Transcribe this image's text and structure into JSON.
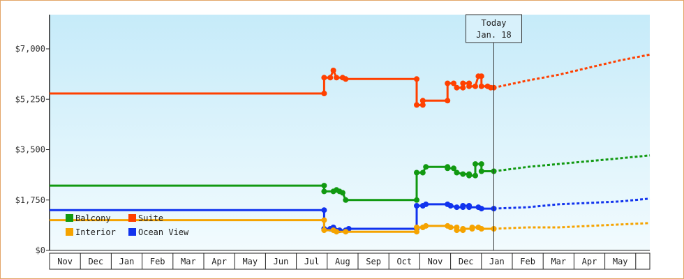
{
  "chart_data": {
    "type": "line",
    "y_ticks": [
      {
        "value": 0,
        "label": "$0"
      },
      {
        "value": 1750,
        "label": "$1,750"
      },
      {
        "value": 3500,
        "label": "$3,500"
      },
      {
        "value": 5250,
        "label": "$5,250"
      },
      {
        "value": 7000,
        "label": "$7,000"
      }
    ],
    "ylim": [
      0,
      7000
    ],
    "x_months": [
      "Nov",
      "Dec",
      "Jan",
      "Feb",
      "Mar",
      "Apr",
      "May",
      "Jun",
      "Jul",
      "Aug",
      "Sep",
      "Oct",
      "Nov",
      "Dec",
      "Jan",
      "Feb",
      "Mar",
      "Apr",
      "May"
    ],
    "today": {
      "line1": "Today",
      "line2": "Jan. 18",
      "x": 14.4
    },
    "legend": [
      "Balcony",
      "Suite",
      "Interior",
      "Ocean View"
    ],
    "series": [
      {
        "name": "Suite",
        "color": "#ff4000",
        "points": [
          [
            0,
            5450
          ],
          [
            8.9,
            5450
          ],
          [
            8.9,
            6000
          ],
          [
            9.1,
            6000
          ],
          [
            9.2,
            6250
          ],
          [
            9.3,
            6000
          ],
          [
            9.5,
            6000
          ],
          [
            9.6,
            5950
          ],
          [
            11.9,
            5950
          ],
          [
            11.9,
            5050
          ],
          [
            12.1,
            5050
          ],
          [
            12.1,
            5200
          ],
          [
            12.9,
            5200
          ],
          [
            12.9,
            5800
          ],
          [
            13.1,
            5800
          ],
          [
            13.2,
            5650
          ],
          [
            13.4,
            5650
          ],
          [
            13.4,
            5800
          ],
          [
            13.6,
            5800
          ],
          [
            13.6,
            5700
          ],
          [
            13.8,
            5700
          ],
          [
            13.9,
            6050
          ],
          [
            14.0,
            6050
          ],
          [
            14.0,
            5700
          ],
          [
            14.2,
            5700
          ],
          [
            14.3,
            5650
          ],
          [
            14.4,
            5650
          ]
        ],
        "forecast": [
          [
            14.4,
            5650
          ],
          [
            15.5,
            5900
          ],
          [
            16.5,
            6100
          ],
          [
            17.5,
            6350
          ],
          [
            18.5,
            6600
          ],
          [
            19.5,
            6800
          ]
        ]
      },
      {
        "name": "Balcony",
        "color": "#119911",
        "points": [
          [
            0,
            2250
          ],
          [
            8.9,
            2250
          ],
          [
            8.9,
            2050
          ],
          [
            9.2,
            2050
          ],
          [
            9.3,
            2100
          ],
          [
            9.4,
            2050
          ],
          [
            9.5,
            2000
          ],
          [
            9.6,
            1750
          ],
          [
            11.9,
            1750
          ],
          [
            11.9,
            2700
          ],
          [
            12.1,
            2700
          ],
          [
            12.2,
            2900
          ],
          [
            12.9,
            2900
          ],
          [
            12.9,
            2850
          ],
          [
            13.1,
            2850
          ],
          [
            13.2,
            2700
          ],
          [
            13.4,
            2650
          ],
          [
            13.6,
            2650
          ],
          [
            13.6,
            2600
          ],
          [
            13.8,
            2600
          ],
          [
            13.8,
            3000
          ],
          [
            14.0,
            3000
          ],
          [
            14.0,
            2750
          ],
          [
            14.4,
            2750
          ]
        ],
        "forecast": [
          [
            14.4,
            2750
          ],
          [
            15.5,
            2900
          ],
          [
            16.5,
            3000
          ],
          [
            17.5,
            3100
          ],
          [
            18.5,
            3200
          ],
          [
            19.5,
            3300
          ]
        ]
      },
      {
        "name": "Ocean View",
        "color": "#1133ee",
        "points": [
          [
            0,
            1400
          ],
          [
            8.9,
            1400
          ],
          [
            8.9,
            750
          ],
          [
            9.1,
            750
          ],
          [
            9.2,
            800
          ],
          [
            9.4,
            700
          ],
          [
            9.6,
            700
          ],
          [
            9.7,
            750
          ],
          [
            11.9,
            750
          ],
          [
            11.9,
            1550
          ],
          [
            12.1,
            1550
          ],
          [
            12.2,
            1600
          ],
          [
            12.9,
            1600
          ],
          [
            13.0,
            1550
          ],
          [
            13.2,
            1500
          ],
          [
            13.4,
            1500
          ],
          [
            13.4,
            1550
          ],
          [
            13.6,
            1550
          ],
          [
            13.6,
            1500
          ],
          [
            13.9,
            1500
          ],
          [
            14.0,
            1450
          ],
          [
            14.4,
            1450
          ]
        ],
        "forecast": [
          [
            14.4,
            1450
          ],
          [
            15.5,
            1500
          ],
          [
            16.5,
            1600
          ],
          [
            17.5,
            1650
          ],
          [
            18.5,
            1700
          ],
          [
            19.5,
            1800
          ]
        ]
      },
      {
        "name": "Interior",
        "color": "#f5a300",
        "points": [
          [
            0,
            1050
          ],
          [
            8.9,
            1050
          ],
          [
            8.9,
            700
          ],
          [
            9.2,
            700
          ],
          [
            9.3,
            650
          ],
          [
            9.6,
            650
          ],
          [
            11.9,
            650
          ],
          [
            11.9,
            800
          ],
          [
            12.1,
            800
          ],
          [
            12.2,
            850
          ],
          [
            12.9,
            850
          ],
          [
            13.0,
            800
          ],
          [
            13.2,
            800
          ],
          [
            13.2,
            700
          ],
          [
            13.4,
            700
          ],
          [
            13.4,
            750
          ],
          [
            13.7,
            750
          ],
          [
            13.7,
            800
          ],
          [
            13.9,
            800
          ],
          [
            14.0,
            750
          ],
          [
            14.4,
            750
          ]
        ],
        "forecast": [
          [
            14.4,
            750
          ],
          [
            15.5,
            800
          ],
          [
            16.5,
            800
          ],
          [
            17.5,
            850
          ],
          [
            18.5,
            900
          ],
          [
            19.5,
            950
          ]
        ]
      }
    ]
  }
}
